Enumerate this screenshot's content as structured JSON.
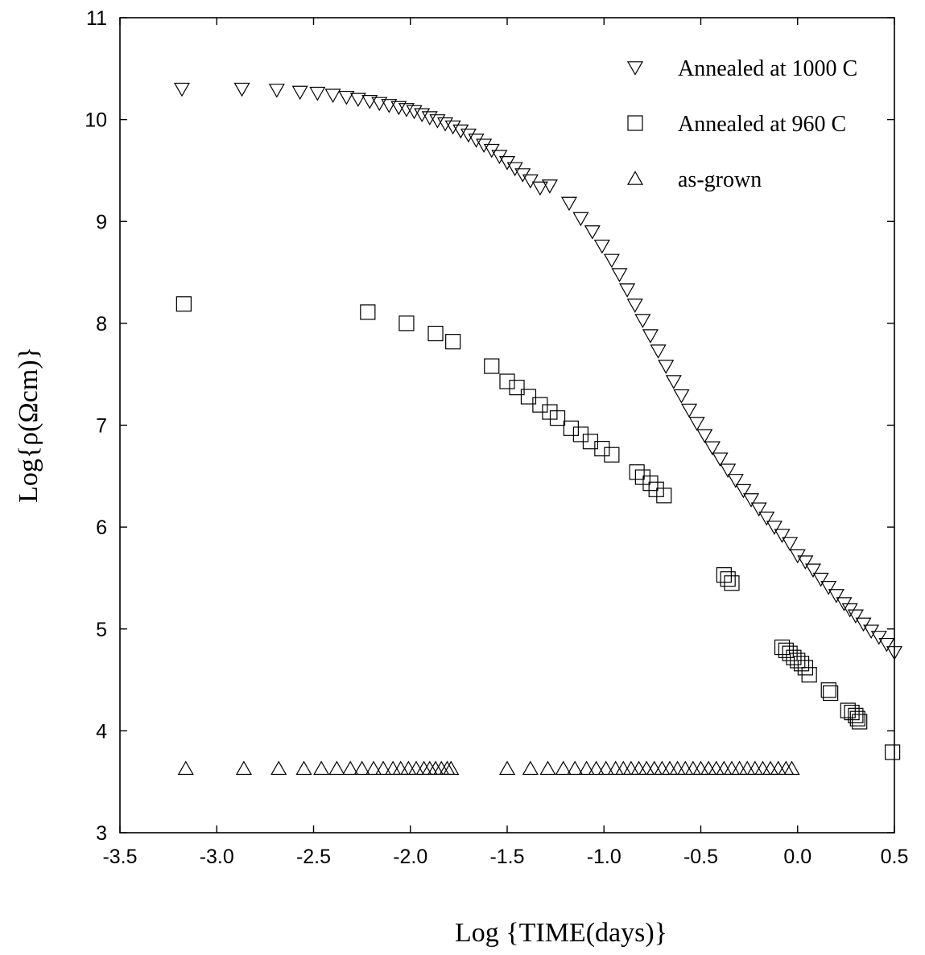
{
  "chart_data": {
    "type": "scatter",
    "xlabel": "Log {TIME(days)}",
    "ylabel": "Log{ρ(Ωcm)}",
    "xlim": [
      -3.5,
      0.5
    ],
    "ylim": [
      3,
      11
    ],
    "xticks": [
      "-3.5",
      "-3.0",
      "-2.5",
      "-2.0",
      "-1.5",
      "-1.0",
      "-0.5",
      "0.0",
      "0.5"
    ],
    "yticks": [
      "3",
      "4",
      "5",
      "6",
      "7",
      "8",
      "9",
      "10",
      "11"
    ],
    "grid": false,
    "legend_position": "top-right",
    "series": [
      {
        "name": "Annealed at 1000 C",
        "marker": "triangle-down",
        "points": [
          [
            -3.18,
            10.3
          ],
          [
            -2.87,
            10.3
          ],
          [
            -2.69,
            10.29
          ],
          [
            -2.57,
            10.27
          ],
          [
            -2.48,
            10.26
          ],
          [
            -2.4,
            10.24
          ],
          [
            -2.33,
            10.22
          ],
          [
            -2.27,
            10.2
          ],
          [
            -2.21,
            10.18
          ],
          [
            -2.16,
            10.16
          ],
          [
            -2.11,
            10.14
          ],
          [
            -2.06,
            10.12
          ],
          [
            -2.02,
            10.1
          ],
          [
            -1.98,
            10.08
          ],
          [
            -1.94,
            10.05
          ],
          [
            -1.9,
            10.02
          ],
          [
            -1.86,
            9.99
          ],
          [
            -1.82,
            9.96
          ],
          [
            -1.78,
            9.93
          ],
          [
            -1.74,
            9.89
          ],
          [
            -1.7,
            9.85
          ],
          [
            -1.66,
            9.8
          ],
          [
            -1.62,
            9.75
          ],
          [
            -1.58,
            9.7
          ],
          [
            -1.54,
            9.64
          ],
          [
            -1.5,
            9.58
          ],
          [
            -1.46,
            9.52
          ],
          [
            -1.42,
            9.46
          ],
          [
            -1.38,
            9.4
          ],
          [
            -1.33,
            9.33
          ],
          [
            -1.28,
            9.35
          ],
          [
            -1.18,
            9.18
          ],
          [
            -1.12,
            9.03
          ],
          [
            -1.06,
            8.9
          ],
          [
            -1.01,
            8.76
          ],
          [
            -0.96,
            8.62
          ],
          [
            -0.92,
            8.48
          ],
          [
            -0.88,
            8.33
          ],
          [
            -0.84,
            8.18
          ],
          [
            -0.8,
            8.03
          ],
          [
            -0.76,
            7.88
          ],
          [
            -0.72,
            7.73
          ],
          [
            -0.68,
            7.58
          ],
          [
            -0.64,
            7.43
          ],
          [
            -0.6,
            7.29
          ],
          [
            -0.56,
            7.15
          ],
          [
            -0.52,
            7.02
          ],
          [
            -0.48,
            6.9
          ],
          [
            -0.44,
            6.78
          ],
          [
            -0.4,
            6.67
          ],
          [
            -0.36,
            6.56
          ],
          [
            -0.32,
            6.46
          ],
          [
            -0.28,
            6.36
          ],
          [
            -0.24,
            6.27
          ],
          [
            -0.2,
            6.18
          ],
          [
            -0.16,
            6.09
          ],
          [
            -0.12,
            6.0
          ],
          [
            -0.08,
            5.92
          ],
          [
            -0.04,
            5.84
          ],
          [
            0.0,
            5.72
          ],
          [
            0.04,
            5.66
          ],
          [
            0.08,
            5.58
          ],
          [
            0.12,
            5.49
          ],
          [
            0.16,
            5.41
          ],
          [
            0.2,
            5.33
          ],
          [
            0.24,
            5.25
          ],
          [
            0.27,
            5.19
          ],
          [
            0.3,
            5.13
          ],
          [
            0.34,
            5.05
          ],
          [
            0.38,
            4.98
          ],
          [
            0.42,
            4.92
          ],
          [
            0.46,
            4.85
          ],
          [
            0.5,
            4.77
          ]
        ]
      },
      {
        "name": "Annealed at 960 C",
        "marker": "square",
        "points": [
          [
            -3.17,
            8.19
          ],
          [
            -2.22,
            8.11
          ],
          [
            -2.02,
            8.0
          ],
          [
            -1.87,
            7.9
          ],
          [
            -1.78,
            7.82
          ],
          [
            -1.58,
            7.58
          ],
          [
            -1.5,
            7.43
          ],
          [
            -1.45,
            7.37
          ],
          [
            -1.39,
            7.28
          ],
          [
            -1.33,
            7.2
          ],
          [
            -1.28,
            7.13
          ],
          [
            -1.24,
            7.07
          ],
          [
            -1.17,
            6.97
          ],
          [
            -1.12,
            6.91
          ],
          [
            -1.07,
            6.84
          ],
          [
            -1.01,
            6.77
          ],
          [
            -0.96,
            6.71
          ],
          [
            -0.83,
            6.54
          ],
          [
            -0.8,
            6.49
          ],
          [
            -0.76,
            6.43
          ],
          [
            -0.73,
            6.37
          ],
          [
            -0.69,
            6.31
          ],
          [
            -0.38,
            5.53
          ],
          [
            -0.36,
            5.49
          ],
          [
            -0.34,
            5.45
          ],
          [
            -0.08,
            4.82
          ],
          [
            -0.06,
            4.79
          ],
          [
            -0.04,
            4.76
          ],
          [
            -0.02,
            4.72
          ],
          [
            0.0,
            4.69
          ],
          [
            0.02,
            4.66
          ],
          [
            0.04,
            4.62
          ],
          [
            0.06,
            4.55
          ],
          [
            0.16,
            4.4
          ],
          [
            0.17,
            4.37
          ],
          [
            0.26,
            4.2
          ],
          [
            0.28,
            4.18
          ],
          [
            0.3,
            4.15
          ],
          [
            0.31,
            4.12
          ],
          [
            0.32,
            4.09
          ],
          [
            0.49,
            3.79
          ]
        ]
      },
      {
        "name": "as-grown",
        "marker": "triangle-up",
        "points": [
          [
            -3.16,
            3.63
          ],
          [
            -2.86,
            3.63
          ],
          [
            -2.68,
            3.63
          ],
          [
            -2.55,
            3.63
          ],
          [
            -2.46,
            3.63
          ],
          [
            -2.38,
            3.63
          ],
          [
            -2.31,
            3.63
          ],
          [
            -2.25,
            3.63
          ],
          [
            -2.19,
            3.63
          ],
          [
            -2.14,
            3.63
          ],
          [
            -2.09,
            3.63
          ],
          [
            -2.05,
            3.63
          ],
          [
            -2.01,
            3.63
          ],
          [
            -1.97,
            3.63
          ],
          [
            -1.93,
            3.63
          ],
          [
            -1.9,
            3.63
          ],
          [
            -1.87,
            3.63
          ],
          [
            -1.84,
            3.63
          ],
          [
            -1.81,
            3.63
          ],
          [
            -1.79,
            3.63
          ],
          [
            -1.5,
            3.63
          ],
          [
            -1.38,
            3.63
          ],
          [
            -1.29,
            3.63
          ],
          [
            -1.21,
            3.63
          ],
          [
            -1.15,
            3.63
          ],
          [
            -1.09,
            3.63
          ],
          [
            -1.04,
            3.63
          ],
          [
            -0.99,
            3.63
          ],
          [
            -0.94,
            3.63
          ],
          [
            -0.9,
            3.63
          ],
          [
            -0.86,
            3.63
          ],
          [
            -0.82,
            3.63
          ],
          [
            -0.78,
            3.63
          ],
          [
            -0.74,
            3.63
          ],
          [
            -0.7,
            3.63
          ],
          [
            -0.66,
            3.63
          ],
          [
            -0.62,
            3.63
          ],
          [
            -0.58,
            3.63
          ],
          [
            -0.54,
            3.63
          ],
          [
            -0.5,
            3.63
          ],
          [
            -0.46,
            3.63
          ],
          [
            -0.42,
            3.63
          ],
          [
            -0.38,
            3.63
          ],
          [
            -0.34,
            3.63
          ],
          [
            -0.3,
            3.63
          ],
          [
            -0.26,
            3.63
          ],
          [
            -0.22,
            3.63
          ],
          [
            -0.18,
            3.63
          ],
          [
            -0.14,
            3.63
          ],
          [
            -0.1,
            3.63
          ],
          [
            -0.06,
            3.63
          ],
          [
            -0.03,
            3.63
          ]
        ]
      }
    ]
  }
}
